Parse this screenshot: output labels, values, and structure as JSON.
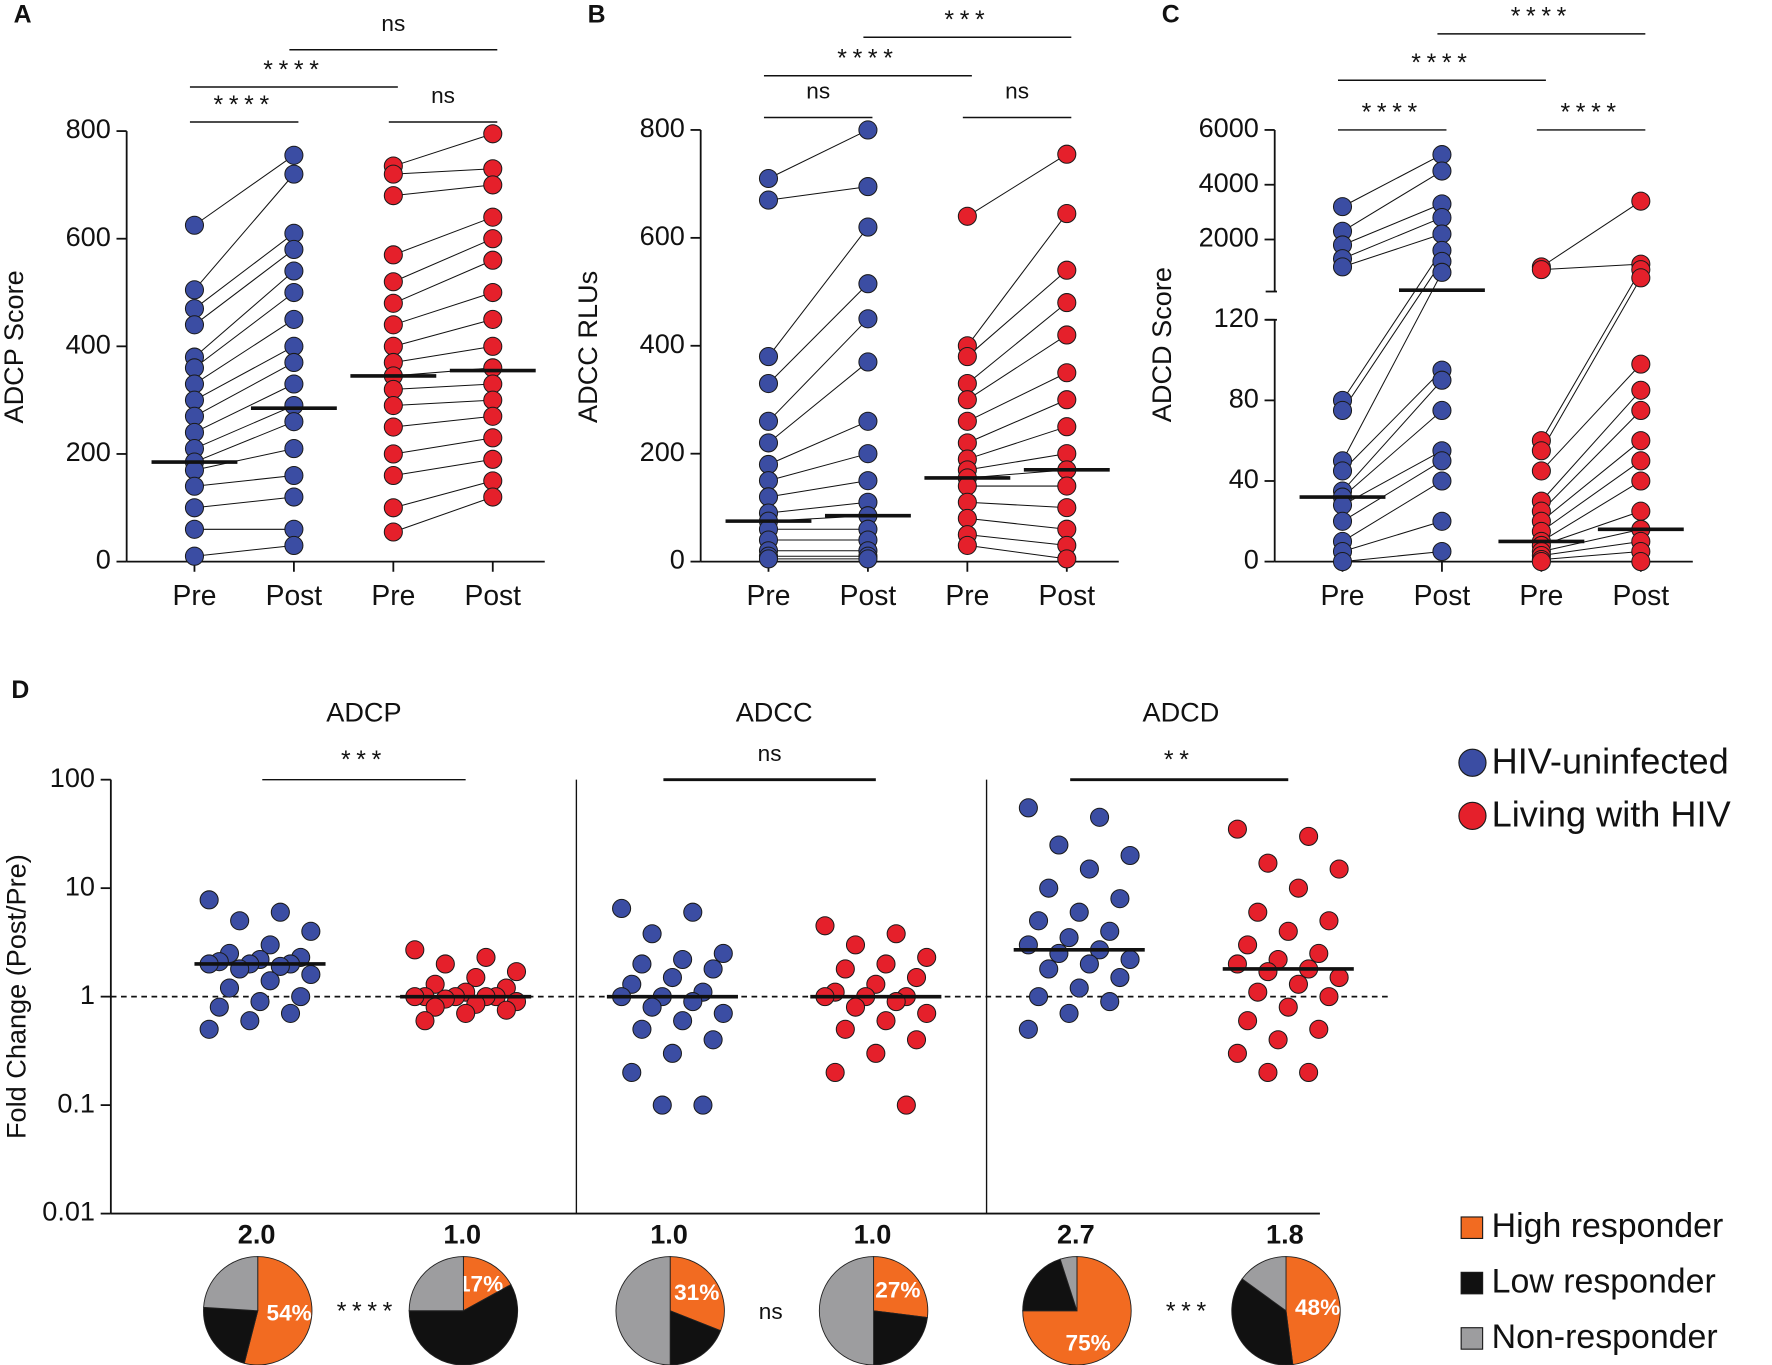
{
  "chart_data": [
    {
      "type": "paired",
      "panel": "A",
      "ylabel": "ADCP Score",
      "categories": [
        "Pre",
        "Post",
        "Pre",
        "Post"
      ],
      "ylim": [
        0,
        800
      ],
      "yticks": [
        0,
        200,
        400,
        600,
        800
      ],
      "comparisons": [
        "****",
        "****",
        "ns",
        "ns"
      ],
      "series": [
        {
          "color": "#3b4da3",
          "pre": [
            625,
            505,
            470,
            440,
            380,
            360,
            330,
            300,
            270,
            240,
            210,
            185,
            170,
            140,
            100,
            60,
            10
          ],
          "post": [
            755,
            720,
            610,
            580,
            540,
            500,
            450,
            400,
            370,
            330,
            290,
            260,
            210,
            160,
            120,
            60,
            30
          ],
          "medians": [
            185,
            285
          ]
        },
        {
          "color": "#e5202b",
          "pre": [
            735,
            720,
            680,
            570,
            520,
            480,
            440,
            400,
            370,
            345,
            320,
            290,
            250,
            200,
            160,
            100,
            55
          ],
          "post": [
            795,
            730,
            700,
            640,
            600,
            560,
            500,
            450,
            400,
            360,
            330,
            300,
            270,
            230,
            190,
            150,
            120
          ],
          "medians": [
            345,
            355
          ]
        }
      ]
    },
    {
      "type": "paired",
      "panel": "B",
      "ylabel": "ADCC RLUs",
      "categories": [
        "Pre",
        "Post",
        "Pre",
        "Post"
      ],
      "ylim": [
        0,
        800
      ],
      "yticks": [
        0,
        200,
        400,
        600,
        800
      ],
      "comparisons": [
        "ns",
        "****",
        "***",
        "ns"
      ],
      "series": [
        {
          "color": "#3b4da3",
          "pre": [
            710,
            670,
            380,
            330,
            260,
            220,
            180,
            150,
            120,
            90,
            75,
            60,
            40,
            20,
            10,
            5
          ],
          "post": [
            800,
            695,
            620,
            515,
            450,
            370,
            260,
            200,
            150,
            110,
            85,
            60,
            40,
            20,
            10,
            5
          ],
          "medians": [
            75,
            85
          ]
        },
        {
          "color": "#e5202b",
          "pre": [
            640,
            400,
            380,
            330,
            300,
            260,
            220,
            190,
            170,
            155,
            140,
            110,
            80,
            50,
            30
          ],
          "post": [
            755,
            645,
            540,
            480,
            420,
            350,
            300,
            250,
            200,
            170,
            140,
            100,
            60,
            30,
            5
          ],
          "medians": [
            155,
            170
          ]
        }
      ]
    },
    {
      "type": "paired",
      "panel": "C",
      "ylabel": "ADCD Score",
      "categories": [
        "Pre",
        "Post",
        "Pre",
        "Post"
      ],
      "ylim": [
        0,
        120
      ],
      "yticks": [
        0,
        40,
        80,
        120
      ],
      "break_ylim": [
        100,
        6000
      ],
      "break_yticks": [
        2000,
        4000,
        6000
      ],
      "comparisons": [
        "****",
        "****",
        "****",
        "****"
      ],
      "series": [
        {
          "color": "#3b4da3",
          "pre": [
            3200,
            2300,
            1800,
            1300,
            1000,
            80,
            75,
            50,
            45,
            35,
            32,
            28,
            20,
            10,
            5,
            0
          ],
          "post": [
            5100,
            4500,
            3300,
            2800,
            2200,
            1600,
            1200,
            800,
            95,
            90,
            75,
            55,
            50,
            40,
            20,
            5
          ],
          "medians": [
            32,
            150
          ]
        },
        {
          "color": "#e5202b",
          "pre": [
            1000,
            900,
            60,
            55,
            45,
            30,
            25,
            20,
            15,
            10,
            8,
            5,
            3,
            1,
            0
          ],
          "post": [
            3400,
            1100,
            900,
            600,
            98,
            85,
            75,
            60,
            50,
            40,
            25,
            16,
            10,
            5,
            0
          ],
          "medians": [
            10,
            16
          ]
        }
      ]
    },
    {
      "type": "fold",
      "panel": "D",
      "ylabel": "Fold Change (Post/Pre)",
      "log_scale": true,
      "ylim": [
        0.01,
        100
      ],
      "yticks": [
        0.01,
        0.1,
        1,
        10,
        100
      ],
      "reference": 1,
      "series": [
        {
          "name": "HIV-uninfected",
          "color": "#3b4da3"
        },
        {
          "name": "Living with HIV",
          "color": "#e5202b"
        }
      ],
      "responders": {
        "names": [
          "High responder",
          "Low responder",
          "Non-responder"
        ],
        "colors": [
          "#f26b21",
          "#111111",
          "#9d9d9f"
        ]
      },
      "assays": [
        {
          "title": "ADCP",
          "significance": "***",
          "pie_significance": "****",
          "groups": [
            {
              "values": [
                7.8,
                6,
                5,
                4,
                3,
                2.5,
                2.3,
                2.2,
                2.1,
                2,
                2,
                2,
                1.9,
                1.8,
                1.6,
                1.4,
                1.2,
                1,
                0.9,
                0.8,
                0.7,
                0.6,
                0.5
              ],
              "median": 2,
              "median_label": "2.0",
              "pie": [
                54,
                22,
                24
              ],
              "pie_labels": [
                "54%",
                null,
                null
              ]
            },
            {
              "values": [
                2.7,
                2.3,
                2,
                1.7,
                1.5,
                1.3,
                1.2,
                1.1,
                1,
                1,
                1,
                1,
                1,
                0.95,
                0.9,
                0.85,
                0.8,
                0.75,
                0.7,
                0.6
              ],
              "median": 1,
              "median_label": "1.0",
              "pie": [
                17,
                58,
                25
              ],
              "pie_labels": [
                "17%",
                null,
                null
              ]
            }
          ]
        },
        {
          "title": "ADCC",
          "significance": "ns",
          "pie_significance": "ns",
          "groups": [
            {
              "values": [
                6.5,
                6,
                3.8,
                2.5,
                2.2,
                2,
                1.8,
                1.5,
                1.3,
                1.1,
                1,
                1,
                0.9,
                0.8,
                0.7,
                0.6,
                0.5,
                0.4,
                0.3,
                0.2,
                0.1,
                0.1
              ],
              "median": 1,
              "median_label": "1.0",
              "pie": [
                31,
                19,
                50
              ],
              "pie_labels": [
                "31%",
                null,
                null
              ]
            },
            {
              "values": [
                4.5,
                3.8,
                3,
                2.3,
                2,
                1.8,
                1.5,
                1.3,
                1.1,
                1,
                1,
                1,
                0.9,
                0.8,
                0.7,
                0.6,
                0.5,
                0.4,
                0.3,
                0.2,
                0.1
              ],
              "median": 1,
              "median_label": "1.0",
              "pie": [
                27,
                23,
                50
              ],
              "pie_labels": [
                "27%",
                null,
                null
              ]
            }
          ]
        },
        {
          "title": "ADCD",
          "significance": "**",
          "pie_significance": "***",
          "groups": [
            {
              "values": [
                55,
                45,
                25,
                20,
                15,
                10,
                8,
                6,
                5,
                4,
                3.5,
                3,
                2.7,
                2.5,
                2.2,
                2,
                1.8,
                1.5,
                1.2,
                1,
                0.9,
                0.7,
                0.5
              ],
              "median": 2.7,
              "median_label": "2.7",
              "pie": [
                75,
                20,
                5
              ],
              "pie_labels": [
                "75%",
                null,
                null
              ]
            },
            {
              "values": [
                35,
                30,
                17,
                15,
                10,
                6,
                5,
                4,
                3,
                2.5,
                2.2,
                2,
                1.8,
                1.7,
                1.5,
                1.3,
                1.1,
                1,
                0.8,
                0.6,
                0.5,
                0.4,
                0.3,
                0.2,
                0.2
              ],
              "median": 1.8,
              "median_label": "1.8",
              "pie": [
                48,
                37,
                15
              ],
              "pie_labels": [
                "48%",
                null,
                null
              ]
            }
          ]
        }
      ]
    }
  ]
}
